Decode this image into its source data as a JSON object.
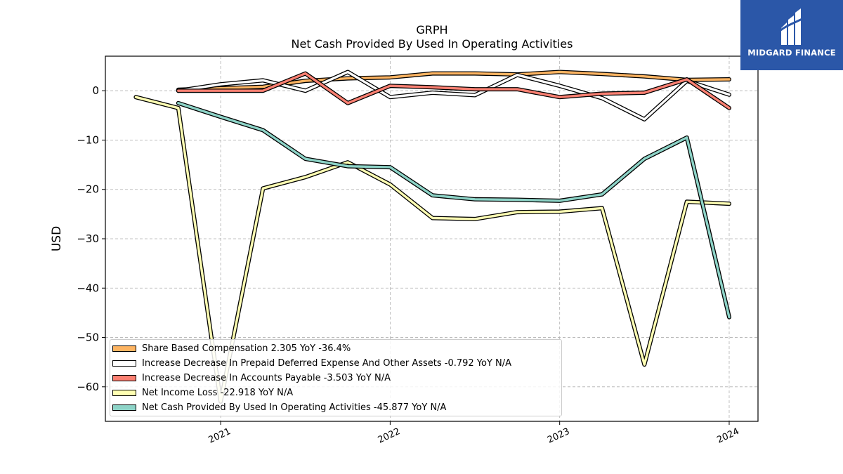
{
  "chart_data": {
    "type": "line",
    "title": "GRPH",
    "subtitle": "Net Cash Provided By Used In Operating Activities",
    "ylabel": "USD",
    "xlabel": "",
    "ylim": [
      -67,
      7
    ],
    "xlim": [
      2020.32,
      2024.17
    ],
    "yticks": [
      0,
      -10,
      -20,
      -30,
      -40,
      -50,
      -60
    ],
    "ytick_labels": [
      "0",
      "−10",
      "−20",
      "−30",
      "−40",
      "−50",
      "−60"
    ],
    "xticks": [
      2021,
      2022,
      2023,
      2024
    ],
    "xtick_labels": [
      "2021",
      "2022",
      "2023",
      "2024"
    ],
    "grid": true,
    "legend_position": "lower-left",
    "series": [
      {
        "name": "Share Based Compensation",
        "legend": "Share Based Compensation  2.305 YoY -36.4%",
        "color": "#fdb462",
        "x": [
          2020.75,
          2021.25,
          2021.5,
          2021.75,
          2022.0,
          2022.25,
          2022.5,
          2022.75,
          2023.0,
          2023.25,
          2023.5,
          2023.75,
          2024.0
        ],
        "y": [
          0.2,
          0.8,
          2.0,
          2.5,
          2.7,
          3.5,
          3.5,
          3.3,
          3.8,
          3.4,
          2.9,
          2.2,
          2.3
        ]
      },
      {
        "name": "Increase Decrease In Prepaid Deferred Expense And Other Assets",
        "legend": "Increase Decrease In Prepaid Deferred Expense And Other Assets  -0.792 YoY N/A",
        "color": "#ffffff",
        "x": [
          2020.75,
          2021.0,
          2021.25,
          2021.5,
          2021.75,
          2022.0,
          2022.25,
          2022.5,
          2022.75,
          2023.0,
          2023.25,
          2023.5,
          2023.75,
          2024.0
        ],
        "y": [
          0.0,
          1.3,
          2.1,
          0.0,
          3.8,
          -1.3,
          -0.4,
          -0.9,
          3.2,
          1.0,
          -1.5,
          -5.8,
          2.0,
          -0.8
        ]
      },
      {
        "name": "Increase Decrease In Accounts Payable",
        "legend": "Increase Decrease In Accounts Payable  -3.503 YoY N/A",
        "color": "#fb8072",
        "x": [
          2020.75,
          2021.25,
          2021.5,
          2021.75,
          2022.0,
          2022.25,
          2022.5,
          2022.75,
          2023.0,
          2023.25,
          2023.5,
          2023.75,
          2024.0
        ],
        "y": [
          0.0,
          0.0,
          3.5,
          -2.5,
          1.0,
          0.7,
          0.3,
          0.3,
          -1.3,
          -0.6,
          -0.4,
          2.3,
          -3.5
        ]
      },
      {
        "name": "Net Income Loss",
        "legend": "Net Income Loss  -22.918 YoY N/A",
        "color": "#ffffb3",
        "x": [
          2020.5,
          2020.75,
          2021.0,
          2021.25,
          2021.5,
          2021.75,
          2022.0,
          2022.25,
          2022.5,
          2022.75,
          2023.0,
          2023.25,
          2023.5,
          2023.75,
          2024.0
        ],
        "y": [
          -1.3,
          -3.5,
          -63.0,
          -19.8,
          -17.5,
          -14.5,
          -19.0,
          -25.8,
          -26.0,
          -24.6,
          -24.5,
          -23.8,
          -55.5,
          -22.5,
          -22.9
        ]
      },
      {
        "name": "Net Cash Provided By Used In Operating Activities",
        "legend": "Net Cash Provided By Used In Operating Activities  -45.877 YoY N/A",
        "color": "#8dd3c7",
        "x": [
          2020.75,
          2021.0,
          2021.25,
          2021.5,
          2021.75,
          2022.0,
          2022.25,
          2022.5,
          2022.75,
          2023.0,
          2023.25,
          2023.5,
          2023.75,
          2024.0
        ],
        "y": [
          -2.5,
          -5.3,
          -8.0,
          -13.8,
          -15.3,
          -15.5,
          -21.2,
          -22.0,
          -22.1,
          -22.3,
          -21.0,
          -13.8,
          -9.5,
          -45.9
        ]
      }
    ]
  },
  "logo": {
    "text": "MIDGARD FINANCE",
    "background": "#2b57a8"
  }
}
